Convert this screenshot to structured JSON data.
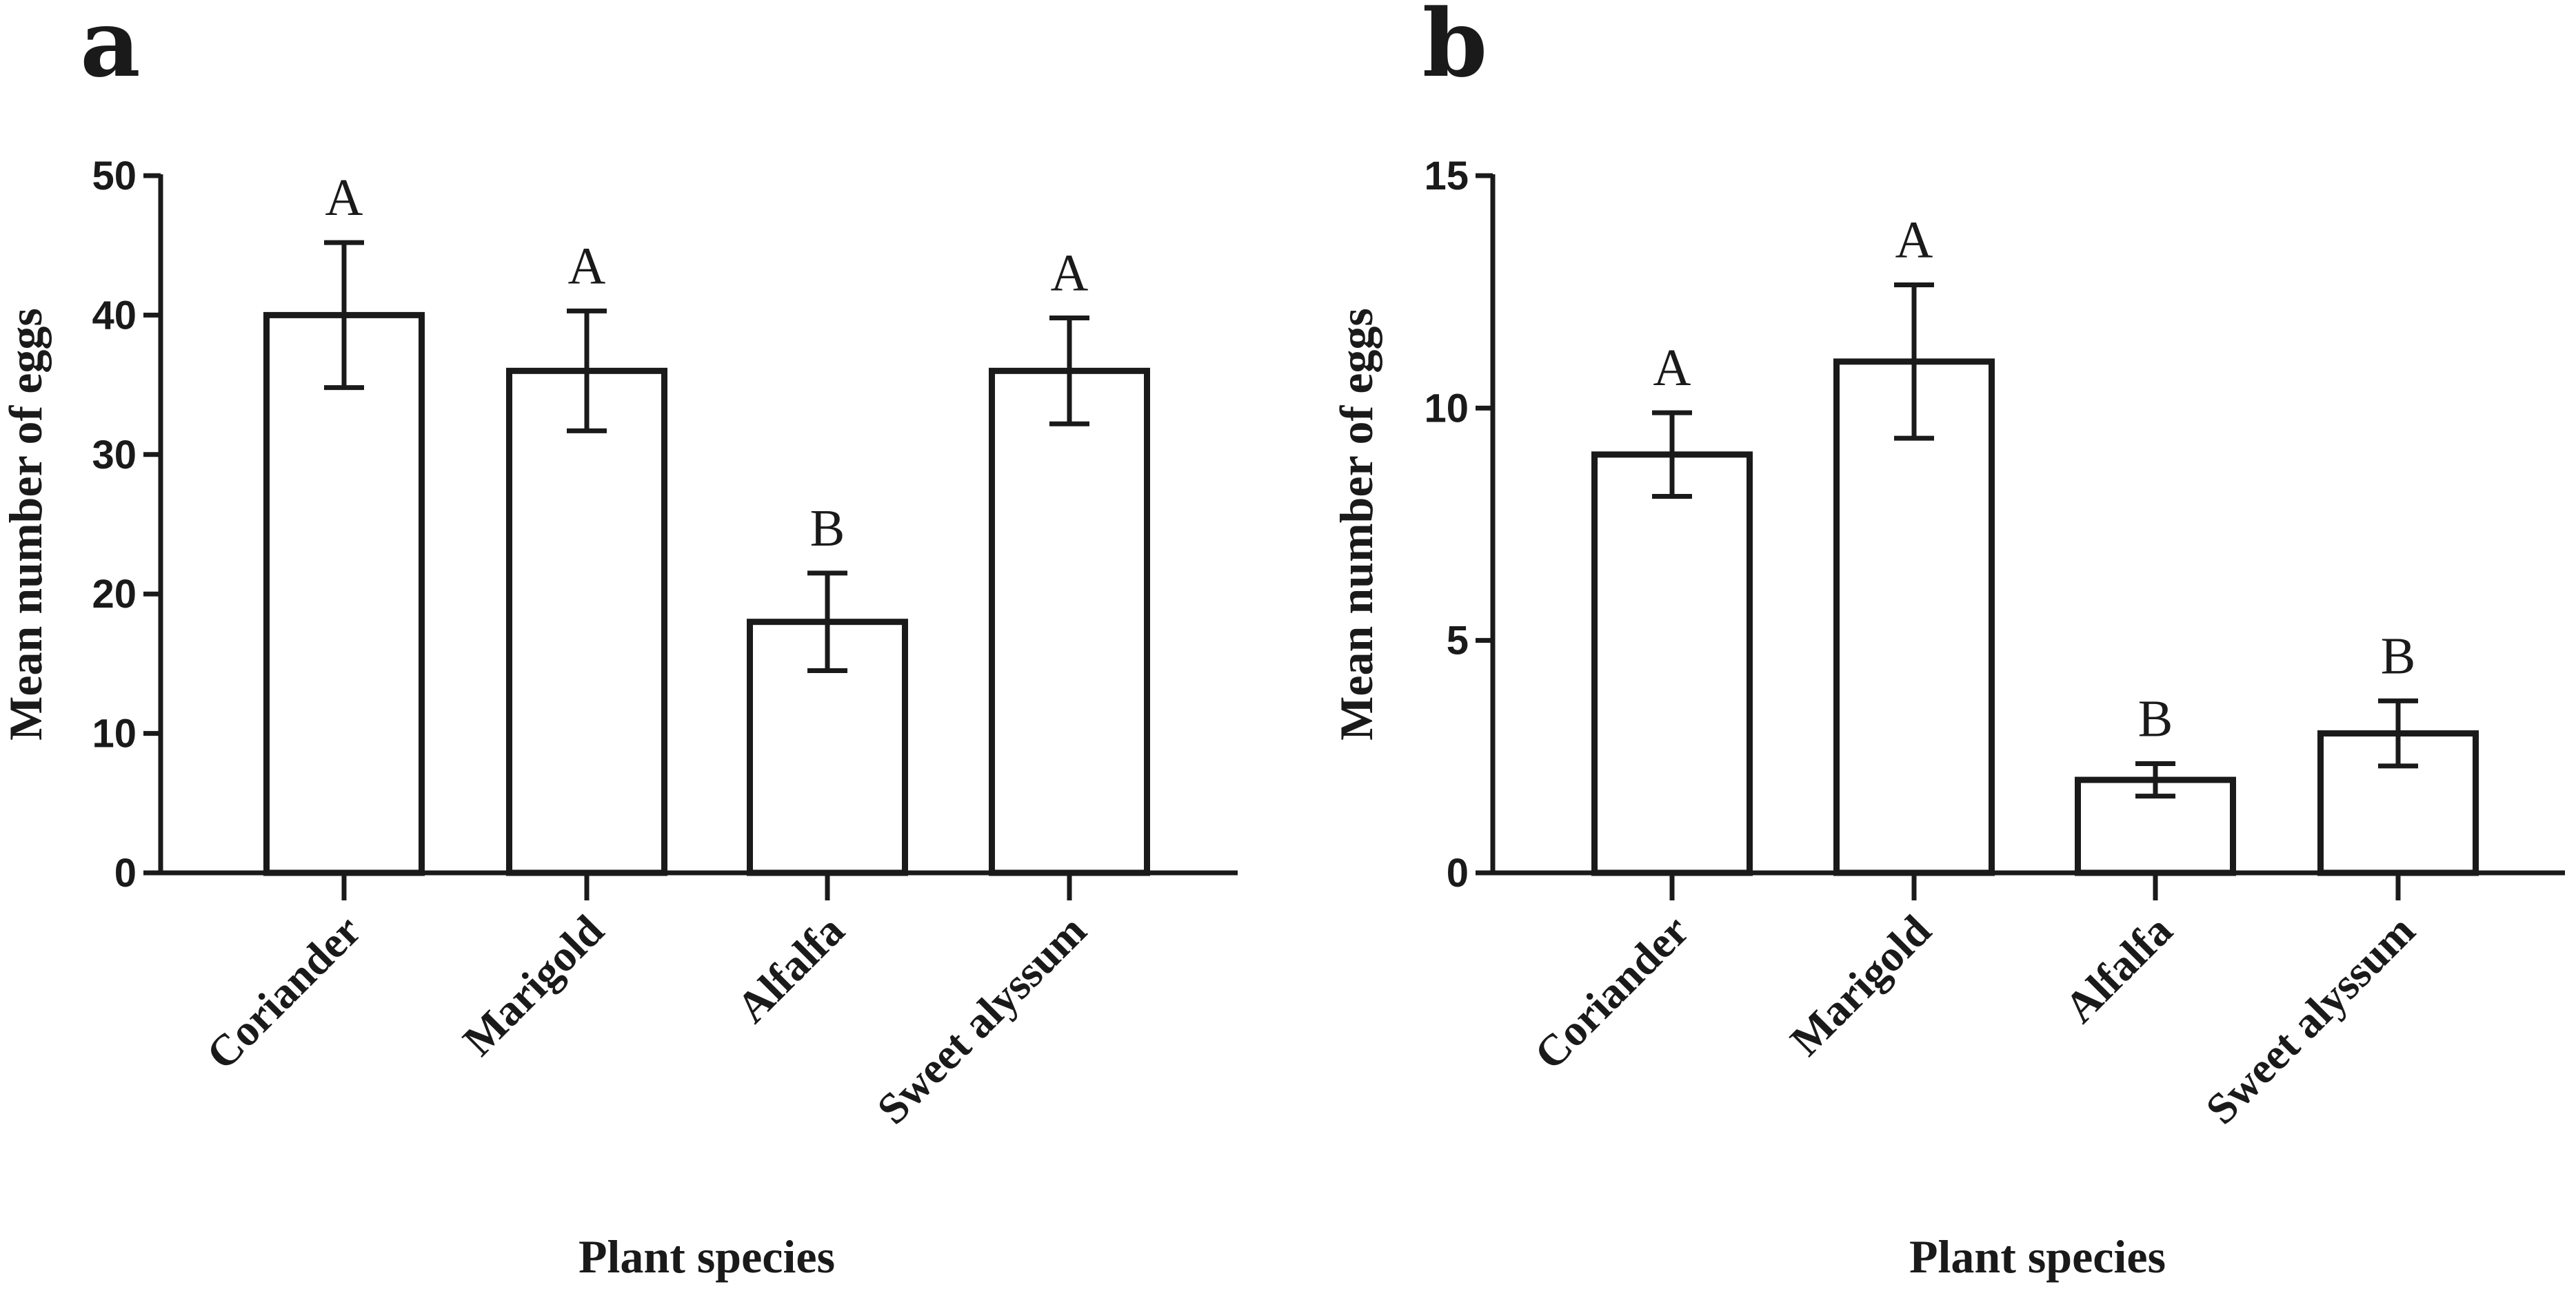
{
  "chart_data": [
    {
      "type": "bar",
      "panel_label": "a",
      "categories": [
        "Coriander",
        "Marigold",
        "Alfalfa",
        "Sweet alyssum"
      ],
      "values": [
        40,
        36,
        18,
        36
      ],
      "errors": [
        5.2,
        4.3,
        3.5,
        3.8
      ],
      "significance": [
        "A",
        "A",
        "B",
        "A"
      ],
      "yticks": [
        0,
        10,
        20,
        30,
        40,
        50
      ],
      "ylim": [
        0,
        50
      ],
      "xlabel": "Plant species",
      "ylabel": "Mean number of eggs"
    },
    {
      "type": "bar",
      "panel_label": "b",
      "categories": [
        "Coriander",
        "Marigold",
        "Alfalfa",
        "Sweet alyssum"
      ],
      "values": [
        9,
        11,
        2,
        3
      ],
      "errors": [
        0.9,
        1.65,
        0.35,
        0.7
      ],
      "significance": [
        "A",
        "A",
        "B",
        "B"
      ],
      "yticks": [
        0,
        5,
        10,
        15
      ],
      "ylim": [
        0,
        15
      ],
      "xlabel": "Plant species",
      "ylabel": "Mean number of eggs"
    }
  ]
}
